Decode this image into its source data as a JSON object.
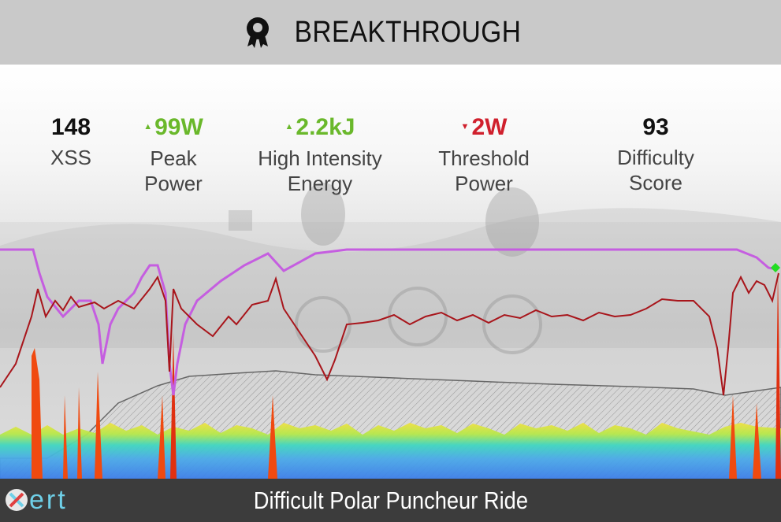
{
  "header": {
    "title": "BREAKTHROUGH",
    "icon": "award-badge-icon"
  },
  "metrics": [
    {
      "value": "148",
      "label": "XSS",
      "trend": "none",
      "color": "#111111"
    },
    {
      "value": "99W",
      "label": "Peak Power",
      "trend": "up",
      "color": "#6ab82b"
    },
    {
      "value": "2.2kJ",
      "label": "High Intensity Energy",
      "trend": "up",
      "color": "#6ab82b"
    },
    {
      "value": "2W",
      "label": "Threshold Power",
      "trend": "down",
      "color": "#d0202d"
    },
    {
      "value": "93",
      "label": "Difficulty Score",
      "trend": "none",
      "color": "#111111"
    }
  ],
  "colors": {
    "mpa_line": "#c55ee0",
    "power_line": "#a8151b",
    "header_bg": "#c9c9c9",
    "footer_bg": "#3c3c3c",
    "logo": "#6fd0e8",
    "marker": "#22dd22"
  },
  "footer": {
    "ride_name": "Difficult Polar Puncheur Ride",
    "logo_text": "ert"
  }
}
